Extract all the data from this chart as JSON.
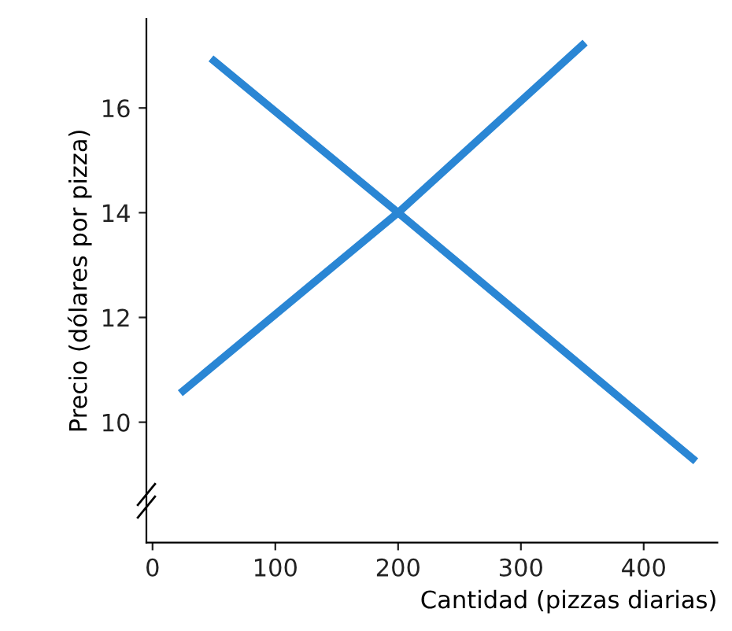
{
  "chart_data": {
    "type": "line",
    "xlabel": "Cantidad (pizzas diarias)",
    "ylabel": "Precio (dólares por pizza)",
    "series": [
      {
        "color": "#2a86d4",
        "x": [
          25,
          200,
          350
        ],
        "values": [
          10.6,
          14,
          17.2
        ]
      },
      {
        "color": "#2a86d4",
        "x": [
          50,
          200,
          440
        ],
        "values": [
          16.9,
          14,
          9.3
        ]
      }
    ],
    "xlim": [
      -5,
      460
    ],
    "ylim": [
      7.7,
      17.7
    ],
    "xticks": [
      0,
      100,
      200,
      300,
      400
    ],
    "yticks": [
      10,
      12,
      14,
      16
    ],
    "grid": false,
    "legend": false,
    "marker": "none",
    "line_style": "solid"
  }
}
